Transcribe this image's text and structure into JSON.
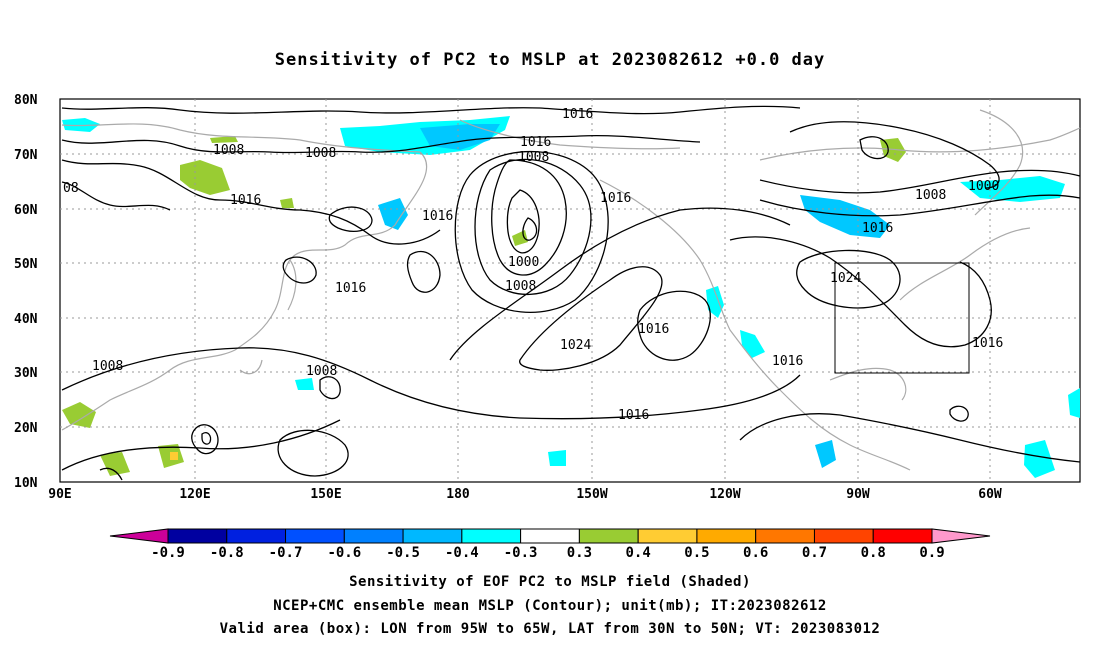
{
  "title": "Sensitivity of PC2 to MSLP at 2023082612 +0.0 day",
  "map": {
    "lat_labels": [
      "80N",
      "70N",
      "60N",
      "50N",
      "40N",
      "30N",
      "20N",
      "10N"
    ],
    "lon_labels": [
      "90E",
      "120E",
      "150E",
      "180",
      "150W",
      "120W",
      "90W",
      "60W"
    ],
    "contour_labels": [
      "1016",
      "1016",
      "1008",
      "1008",
      "1008",
      "08",
      "1016",
      "1016",
      "1016",
      "1016",
      "1000",
      "1008",
      "1016",
      "1008",
      "1000",
      "1016",
      "1024",
      "1024",
      "1016",
      "1016",
      "1016",
      "1008",
      "1008",
      "1016"
    ],
    "valid_box": {
      "lon_from": "95W",
      "lon_to": "65W",
      "lat_from": "30N",
      "lat_to": "50N"
    },
    "colors": {
      "contour": "#000000",
      "coastline": "#aaaaaa",
      "cyan": "#00ffff",
      "light_blue": "#00c8ff",
      "green": "#99cc33",
      "yellow": "#ffcc33"
    }
  },
  "colorbar": {
    "labels": [
      "-0.9",
      "-0.8",
      "-0.7",
      "-0.6",
      "-0.5",
      "-0.4",
      "-0.3",
      "0.3",
      "0.4",
      "0.5",
      "0.6",
      "0.7",
      "0.8",
      "0.9"
    ],
    "colors": [
      "#0000a0",
      "#0020e0",
      "#0050ff",
      "#0080ff",
      "#00b8ff",
      "#00ffff",
      "#ffffff",
      "#99cc33",
      "#ffcc33",
      "#ffaa00",
      "#ff7700",
      "#ff4400",
      "#ff0000"
    ],
    "left_arrow_color": "#cc0099",
    "right_arrow_color": "#ff99cc"
  },
  "captions": [
    "Sensitivity of EOF PC2 to MSLP field (Shaded)",
    "NCEP+CMC ensemble mean MSLP (Contour); unit(mb); IT:2023082612",
    "Valid area (box): LON from 95W to 65W, LAT from 30N to 50N; VT: 2023083012"
  ]
}
